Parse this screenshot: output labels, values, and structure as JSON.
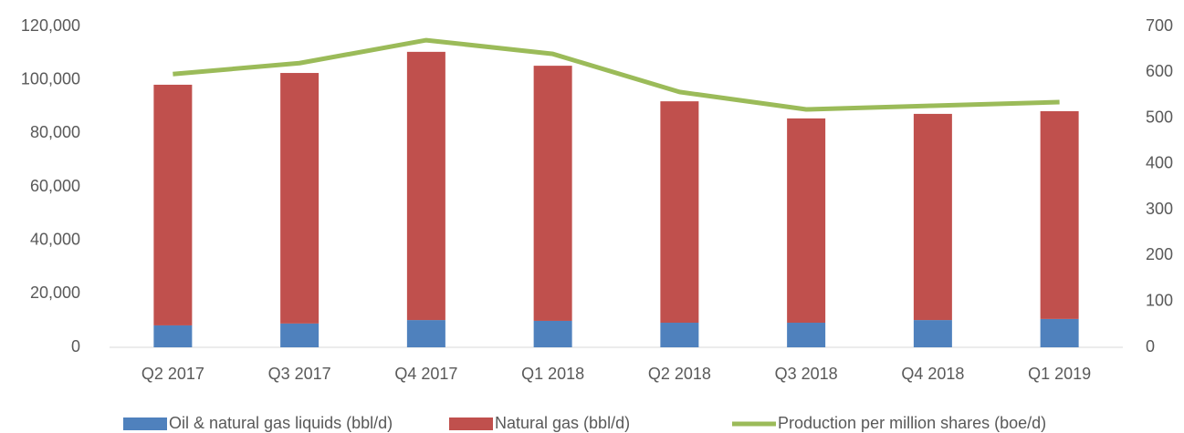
{
  "chart_data": {
    "type": "bar_line",
    "categories": [
      "Q2 2017",
      "Q3 2017",
      "Q4 2017",
      "Q1 2018",
      "Q2 2018",
      "Q3 2018",
      "Q4 2018",
      "Q1 2019"
    ],
    "series": [
      {
        "name": "Oil & natural gas liquids (bbl/d)",
        "color": "#4f81bd",
        "kind": "bar",
        "values": [
          8200,
          8900,
          10200,
          9900,
          9200,
          9200,
          10200,
          10600
        ]
      },
      {
        "name": "Natural gas (bbl/d)",
        "color": "#c0504d",
        "kind": "bar",
        "values": [
          90000,
          93700,
          100300,
          95400,
          82800,
          76400,
          77100,
          77700
        ]
      },
      {
        "name": "Production per million shares (boe/d)",
        "color": "#9bbb59",
        "kind": "line",
        "axis": "y2",
        "values": [
          596,
          620,
          670,
          640,
          557,
          519,
          527,
          535
        ]
      }
    ],
    "ylim": [
      0,
      120000
    ],
    "yticks": [
      0,
      {
        "value": 20000,
        "label": "20,000"
      },
      {
        "value": 40000,
        "label": "40,000"
      },
      {
        "value": 60000,
        "label": "60,000"
      },
      {
        "value": 80000,
        "label": "80,000"
      },
      {
        "value": 100000,
        "label": "100,000"
      },
      {
        "value": 120000,
        "label": "120,000"
      }
    ],
    "y2lim": [
      0,
      700
    ],
    "y2ticks": [
      0,
      100,
      200,
      300,
      400,
      500,
      600,
      700
    ],
    "stacked": true,
    "grid": false,
    "legend": "bottom"
  }
}
